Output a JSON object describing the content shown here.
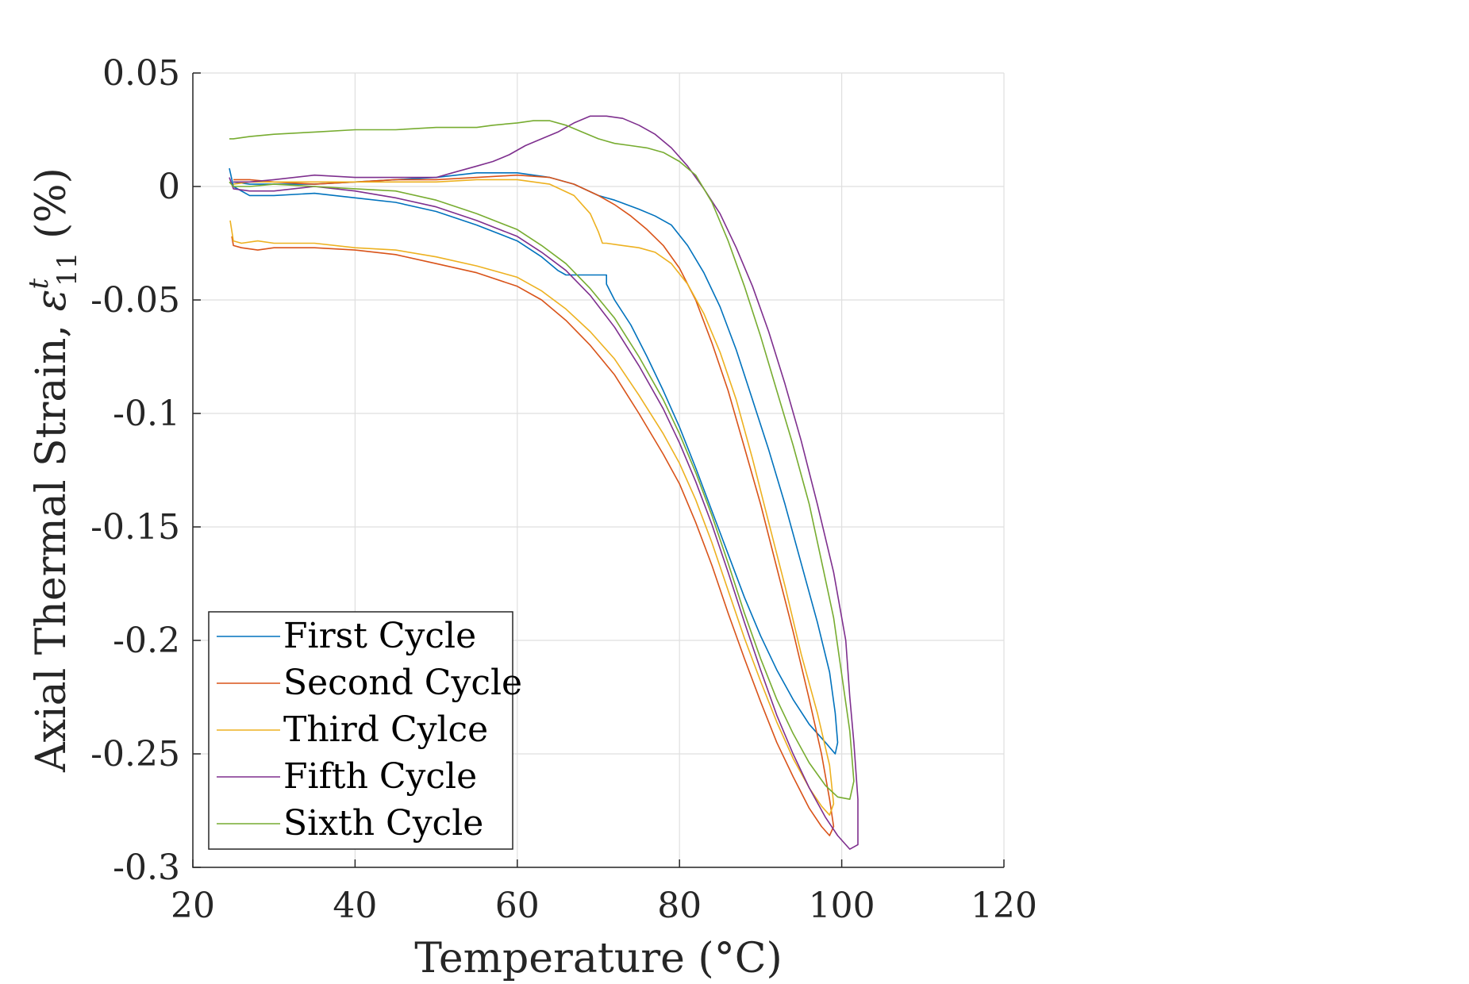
{
  "chart_data": {
    "type": "line",
    "xlabel": "Temperature (°C)",
    "ylabel_prefix": "Axial Thermal Strain, ",
    "ylabel_symbol": "ε",
    "ylabel_sup": "t",
    "ylabel_sub": "11",
    "ylabel_suffix": " (%)",
    "xlim": [
      20,
      120
    ],
    "ylim": [
      -0.3,
      0.05
    ],
    "xticks": [
      20,
      40,
      60,
      80,
      100,
      120
    ],
    "yticks": [
      0.05,
      0,
      -0.05,
      -0.1,
      -0.15,
      -0.2,
      -0.25,
      -0.3
    ],
    "xtick_labels": [
      "20",
      "40",
      "60",
      "80",
      "100",
      "120"
    ],
    "ytick_labels": [
      "0.05",
      "0",
      "-0.05",
      "-0.1",
      "-0.15",
      "-0.2",
      "-0.25",
      "-0.3"
    ],
    "grid": true,
    "legend_position": "bottom-left",
    "series": [
      {
        "name": "First Cycle",
        "color": "#0072BD",
        "points": [
          [
            24.5,
            0.008
          ],
          [
            25,
            0
          ],
          [
            27,
            -0.004
          ],
          [
            30,
            -0.004
          ],
          [
            35,
            -0.003
          ],
          [
            40,
            -0.005
          ],
          [
            45,
            -0.007
          ],
          [
            50,
            -0.011
          ],
          [
            55,
            -0.017
          ],
          [
            60,
            -0.024
          ],
          [
            63,
            -0.031
          ],
          [
            65,
            -0.037
          ],
          [
            66,
            -0.039
          ],
          [
            69,
            -0.039
          ],
          [
            71,
            -0.039
          ],
          [
            71,
            -0.043
          ],
          [
            72,
            -0.05
          ],
          [
            74,
            -0.061
          ],
          [
            76,
            -0.075
          ],
          [
            78,
            -0.09
          ],
          [
            80,
            -0.106
          ],
          [
            82,
            -0.124
          ],
          [
            84,
            -0.143
          ],
          [
            86,
            -0.162
          ],
          [
            88,
            -0.181
          ],
          [
            90,
            -0.198
          ],
          [
            92,
            -0.213
          ],
          [
            94,
            -0.226
          ],
          [
            96,
            -0.237
          ],
          [
            98,
            -0.245
          ],
          [
            99.2,
            -0.25
          ],
          [
            99.5,
            -0.245
          ],
          [
            99.2,
            -0.232
          ],
          [
            98.5,
            -0.214
          ],
          [
            97,
            -0.192
          ],
          [
            95,
            -0.166
          ],
          [
            93,
            -0.14
          ],
          [
            91,
            -0.116
          ],
          [
            89,
            -0.094
          ],
          [
            87,
            -0.072
          ],
          [
            85,
            -0.053
          ],
          [
            83,
            -0.038
          ],
          [
            81,
            -0.026
          ],
          [
            79,
            -0.017
          ],
          [
            77,
            -0.013
          ],
          [
            75,
            -0.01
          ],
          [
            72,
            -0.006
          ],
          [
            70,
            -0.004
          ],
          [
            67,
            0.001
          ],
          [
            64,
            0.004
          ],
          [
            60,
            0.006
          ],
          [
            55,
            0.006
          ],
          [
            50,
            0.004
          ],
          [
            45,
            0.003
          ],
          [
            40,
            0.002
          ],
          [
            35,
            0.001
          ],
          [
            30,
            0.001
          ],
          [
            27,
            0.001
          ],
          [
            25,
            0.002
          ]
        ]
      },
      {
        "name": "Second Cycle",
        "color": "#D95319",
        "points": [
          [
            24.8,
            -0.022
          ],
          [
            25,
            -0.026
          ],
          [
            26,
            -0.027
          ],
          [
            28,
            -0.028
          ],
          [
            30,
            -0.027
          ],
          [
            35,
            -0.027
          ],
          [
            40,
            -0.028
          ],
          [
            45,
            -0.03
          ],
          [
            50,
            -0.034
          ],
          [
            55,
            -0.038
          ],
          [
            60,
            -0.044
          ],
          [
            63,
            -0.05
          ],
          [
            66,
            -0.059
          ],
          [
            69,
            -0.07
          ],
          [
            72,
            -0.083
          ],
          [
            75,
            -0.1
          ],
          [
            78,
            -0.118
          ],
          [
            80,
            -0.131
          ],
          [
            82,
            -0.148
          ],
          [
            84,
            -0.167
          ],
          [
            86,
            -0.188
          ],
          [
            88,
            -0.208
          ],
          [
            90,
            -0.227
          ],
          [
            92,
            -0.245
          ],
          [
            94,
            -0.26
          ],
          [
            96,
            -0.274
          ],
          [
            97.5,
            -0.282
          ],
          [
            98.5,
            -0.286
          ],
          [
            99,
            -0.282
          ],
          [
            98.5,
            -0.27
          ],
          [
            97.5,
            -0.25
          ],
          [
            96,
            -0.226
          ],
          [
            94,
            -0.196
          ],
          [
            92,
            -0.168
          ],
          [
            90,
            -0.14
          ],
          [
            88,
            -0.115
          ],
          [
            86,
            -0.09
          ],
          [
            84,
            -0.069
          ],
          [
            82,
            -0.05
          ],
          [
            80,
            -0.036
          ],
          [
            78,
            -0.026
          ],
          [
            76,
            -0.019
          ],
          [
            74,
            -0.013
          ],
          [
            72,
            -0.008
          ],
          [
            70,
            -0.004
          ],
          [
            67,
            0.001
          ],
          [
            64,
            0.004
          ],
          [
            60,
            0.005
          ],
          [
            55,
            0.004
          ],
          [
            50,
            0.003
          ],
          [
            45,
            0.003
          ],
          [
            40,
            0.002
          ],
          [
            35,
            0.001
          ],
          [
            30,
            0.002
          ],
          [
            27,
            0.003
          ],
          [
            25,
            0.003
          ]
        ]
      },
      {
        "name": "Third Cylce",
        "color": "#EDB120",
        "points": [
          [
            24.6,
            -0.015
          ],
          [
            25,
            -0.024
          ],
          [
            26,
            -0.025
          ],
          [
            28,
            -0.024
          ],
          [
            30,
            -0.025
          ],
          [
            35,
            -0.025
          ],
          [
            40,
            -0.027
          ],
          [
            45,
            -0.028
          ],
          [
            50,
            -0.031
          ],
          [
            55,
            -0.035
          ],
          [
            60,
            -0.04
          ],
          [
            63,
            -0.046
          ],
          [
            66,
            -0.054
          ],
          [
            69,
            -0.064
          ],
          [
            72,
            -0.076
          ],
          [
            75,
            -0.092
          ],
          [
            78,
            -0.109
          ],
          [
            80,
            -0.122
          ],
          [
            82,
            -0.138
          ],
          [
            84,
            -0.157
          ],
          [
            86,
            -0.178
          ],
          [
            88,
            -0.199
          ],
          [
            90,
            -0.218
          ],
          [
            92,
            -0.236
          ],
          [
            94,
            -0.252
          ],
          [
            96,
            -0.265
          ],
          [
            97.5,
            -0.273
          ],
          [
            98.5,
            -0.277
          ],
          [
            99,
            -0.272
          ],
          [
            98.5,
            -0.255
          ],
          [
            97,
            -0.232
          ],
          [
            95,
            -0.206
          ],
          [
            93,
            -0.176
          ],
          [
            91,
            -0.148
          ],
          [
            89,
            -0.12
          ],
          [
            87,
            -0.094
          ],
          [
            85,
            -0.073
          ],
          [
            83,
            -0.056
          ],
          [
            81,
            -0.043
          ],
          [
            79,
            -0.034
          ],
          [
            77,
            -0.029
          ],
          [
            75,
            -0.027
          ],
          [
            73,
            -0.026
          ],
          [
            71,
            -0.025
          ],
          [
            70.5,
            -0.025
          ],
          [
            70,
            -0.02
          ],
          [
            69,
            -0.012
          ],
          [
            67,
            -0.004
          ],
          [
            64,
            0.001
          ],
          [
            60,
            0.003
          ],
          [
            55,
            0.003
          ],
          [
            50,
            0.002
          ],
          [
            45,
            0.002
          ],
          [
            40,
            0.002
          ],
          [
            35,
            0.002
          ],
          [
            30,
            0.002
          ],
          [
            27,
            0.002
          ],
          [
            25,
            0.001
          ]
        ]
      },
      {
        "name": "Fifth Cycle",
        "color": "#7E2F8E",
        "points": [
          [
            24.5,
            0.004
          ],
          [
            25,
            -0.001
          ],
          [
            27,
            -0.002
          ],
          [
            30,
            -0.002
          ],
          [
            35,
            0
          ],
          [
            40,
            -0.002
          ],
          [
            45,
            -0.005
          ],
          [
            50,
            -0.009
          ],
          [
            55,
            -0.015
          ],
          [
            60,
            -0.022
          ],
          [
            63,
            -0.029
          ],
          [
            66,
            -0.037
          ],
          [
            69,
            -0.048
          ],
          [
            72,
            -0.062
          ],
          [
            75,
            -0.079
          ],
          [
            78,
            -0.098
          ],
          [
            80,
            -0.113
          ],
          [
            82,
            -0.13
          ],
          [
            84,
            -0.149
          ],
          [
            86,
            -0.17
          ],
          [
            88,
            -0.192
          ],
          [
            90,
            -0.213
          ],
          [
            92,
            -0.233
          ],
          [
            94,
            -0.25
          ],
          [
            96,
            -0.265
          ],
          [
            98,
            -0.278
          ],
          [
            99.5,
            -0.286
          ],
          [
            101,
            -0.292
          ],
          [
            102,
            -0.29
          ],
          [
            102,
            -0.27
          ],
          [
            101.5,
            -0.245
          ],
          [
            101,
            -0.225
          ],
          [
            100.5,
            -0.2
          ],
          [
            99,
            -0.17
          ],
          [
            97,
            -0.14
          ],
          [
            95,
            -0.112
          ],
          [
            93,
            -0.087
          ],
          [
            91,
            -0.064
          ],
          [
            89,
            -0.044
          ],
          [
            87,
            -0.027
          ],
          [
            85,
            -0.012
          ],
          [
            83,
            -0.001
          ],
          [
            81,
            0.009
          ],
          [
            79,
            0.017
          ],
          [
            77,
            0.023
          ],
          [
            75,
            0.027
          ],
          [
            73,
            0.03
          ],
          [
            71,
            0.031
          ],
          [
            69,
            0.031
          ],
          [
            67,
            0.028
          ],
          [
            65,
            0.024
          ],
          [
            63,
            0.021
          ],
          [
            61,
            0.018
          ],
          [
            59,
            0.014
          ],
          [
            57,
            0.011
          ],
          [
            55,
            0.009
          ],
          [
            52,
            0.006
          ],
          [
            50,
            0.004
          ],
          [
            45,
            0.004
          ],
          [
            40,
            0.004
          ],
          [
            35,
            0.005
          ],
          [
            30,
            0.003
          ],
          [
            27,
            0.002
          ],
          [
            25,
            0.002
          ]
        ]
      },
      {
        "name": "Sixth Cycle",
        "color": "#77AC30",
        "points": [
          [
            24.5,
            0.002
          ],
          [
            25,
            0
          ],
          [
            27,
            0
          ],
          [
            30,
            0.001
          ],
          [
            35,
            0
          ],
          [
            40,
            -0.001
          ],
          [
            45,
            -0.002
          ],
          [
            50,
            -0.006
          ],
          [
            55,
            -0.012
          ],
          [
            60,
            -0.019
          ],
          [
            63,
            -0.026
          ],
          [
            66,
            -0.034
          ],
          [
            69,
            -0.045
          ],
          [
            72,
            -0.058
          ],
          [
            75,
            -0.075
          ],
          [
            78,
            -0.094
          ],
          [
            80,
            -0.109
          ],
          [
            82,
            -0.126
          ],
          [
            84,
            -0.145
          ],
          [
            86,
            -0.166
          ],
          [
            88,
            -0.188
          ],
          [
            90,
            -0.208
          ],
          [
            92,
            -0.226
          ],
          [
            94,
            -0.241
          ],
          [
            96,
            -0.254
          ],
          [
            98,
            -0.264
          ],
          [
            99.5,
            -0.269
          ],
          [
            101,
            -0.27
          ],
          [
            101.5,
            -0.262
          ],
          [
            101,
            -0.24
          ],
          [
            100,
            -0.215
          ],
          [
            99,
            -0.19
          ],
          [
            97.5,
            -0.165
          ],
          [
            96,
            -0.14
          ],
          [
            94,
            -0.114
          ],
          [
            92,
            -0.09
          ],
          [
            90,
            -0.066
          ],
          [
            88,
            -0.044
          ],
          [
            86,
            -0.024
          ],
          [
            84,
            -0.007
          ],
          [
            82,
            0.005
          ],
          [
            80,
            0.011
          ],
          [
            78,
            0.015
          ],
          [
            76,
            0.017
          ],
          [
            74,
            0.018
          ],
          [
            72,
            0.019
          ],
          [
            70,
            0.021
          ],
          [
            68,
            0.024
          ],
          [
            66,
            0.027
          ],
          [
            64,
            0.029
          ],
          [
            62,
            0.029
          ],
          [
            60,
            0.028
          ],
          [
            57,
            0.027
          ],
          [
            55,
            0.026
          ],
          [
            52,
            0.026
          ],
          [
            50,
            0.026
          ],
          [
            45,
            0.025
          ],
          [
            40,
            0.025
          ],
          [
            35,
            0.024
          ],
          [
            30,
            0.023
          ],
          [
            27,
            0.022
          ],
          [
            25,
            0.021
          ],
          [
            24.5,
            0.021
          ]
        ]
      }
    ]
  }
}
